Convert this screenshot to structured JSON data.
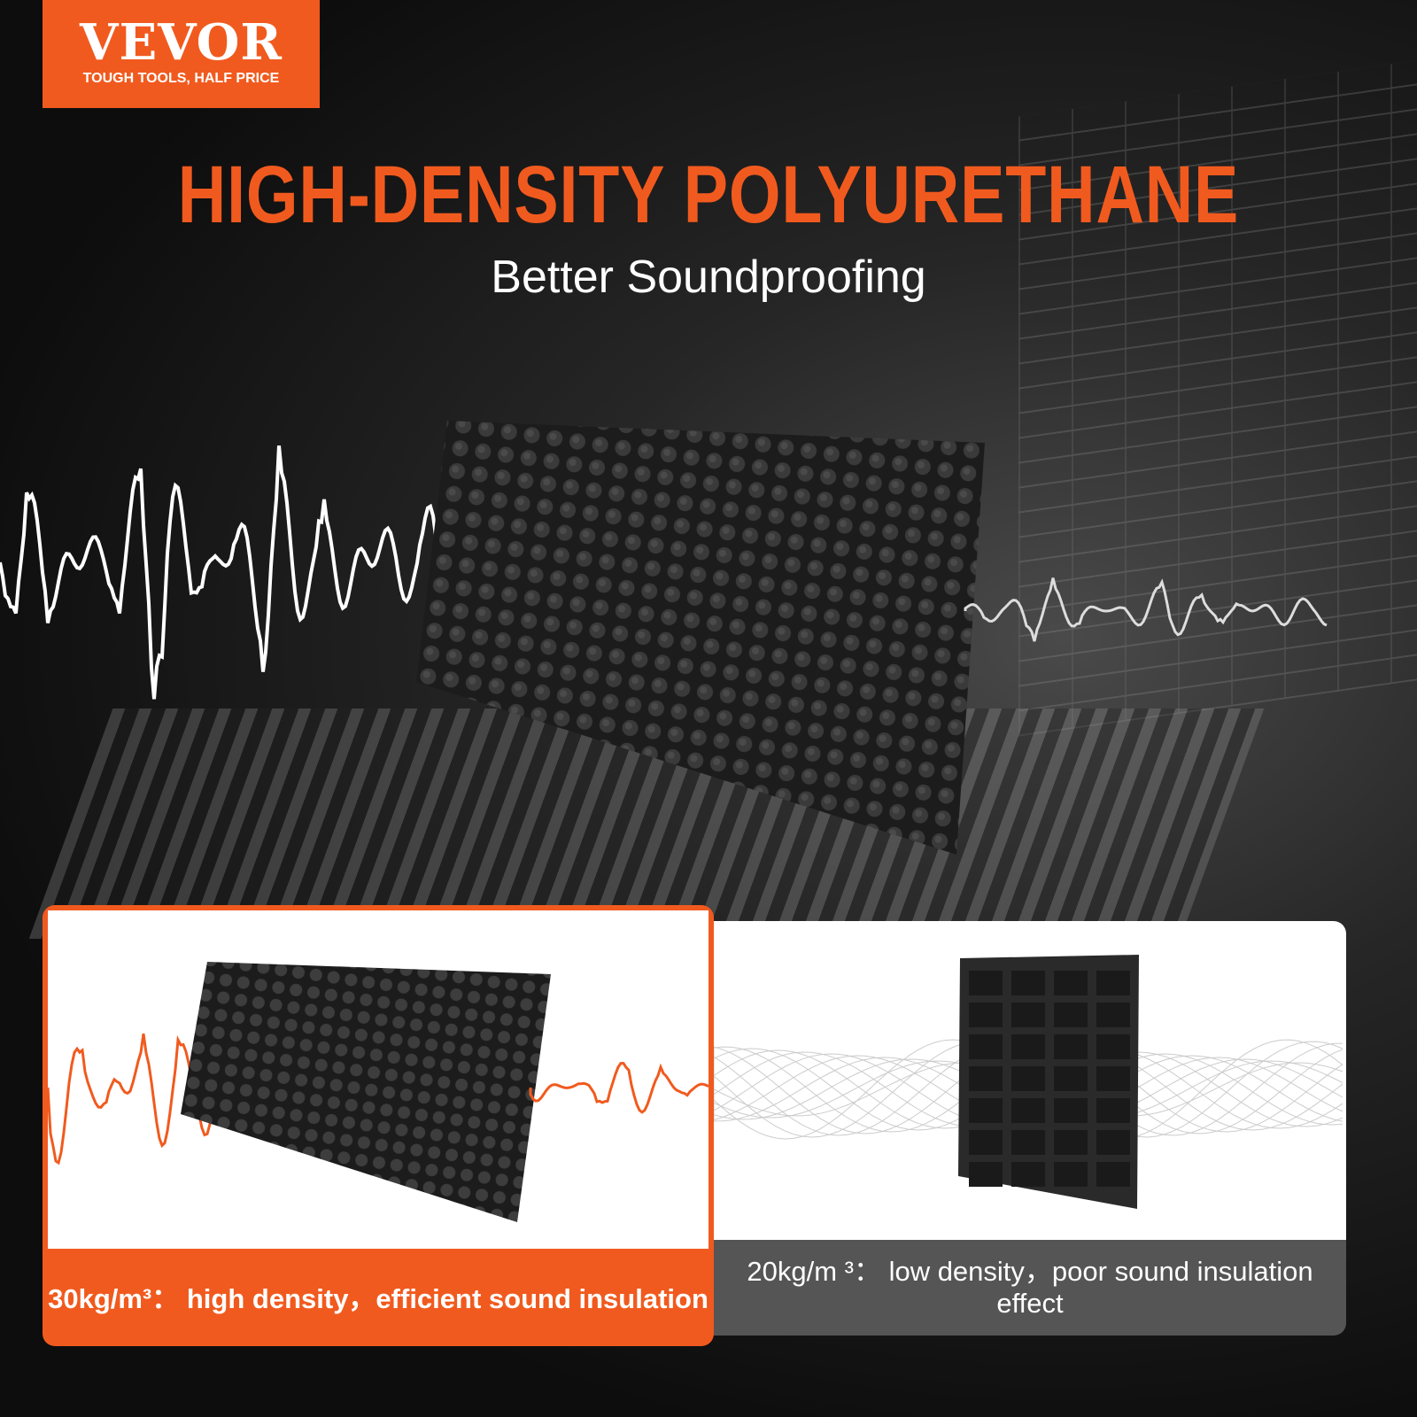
{
  "brand": {
    "name": "VEVOR",
    "tagline": "TOUGH TOOLS, HALF PRICE",
    "color": "#f15a1e"
  },
  "headline": "HIGH-DENSITY POLYURETHANE",
  "subheadline": "Better Soundproofing",
  "comparison": [
    {
      "caption": "30kg/m³： high density，efficient sound insulation",
      "color": "#f15a1e",
      "wave_color": "#f15a1e"
    },
    {
      "caption": "20kg/m ³： low density，poor sound insulation effect",
      "color": "#555555",
      "wave_color": "#9a9a9a"
    }
  ]
}
